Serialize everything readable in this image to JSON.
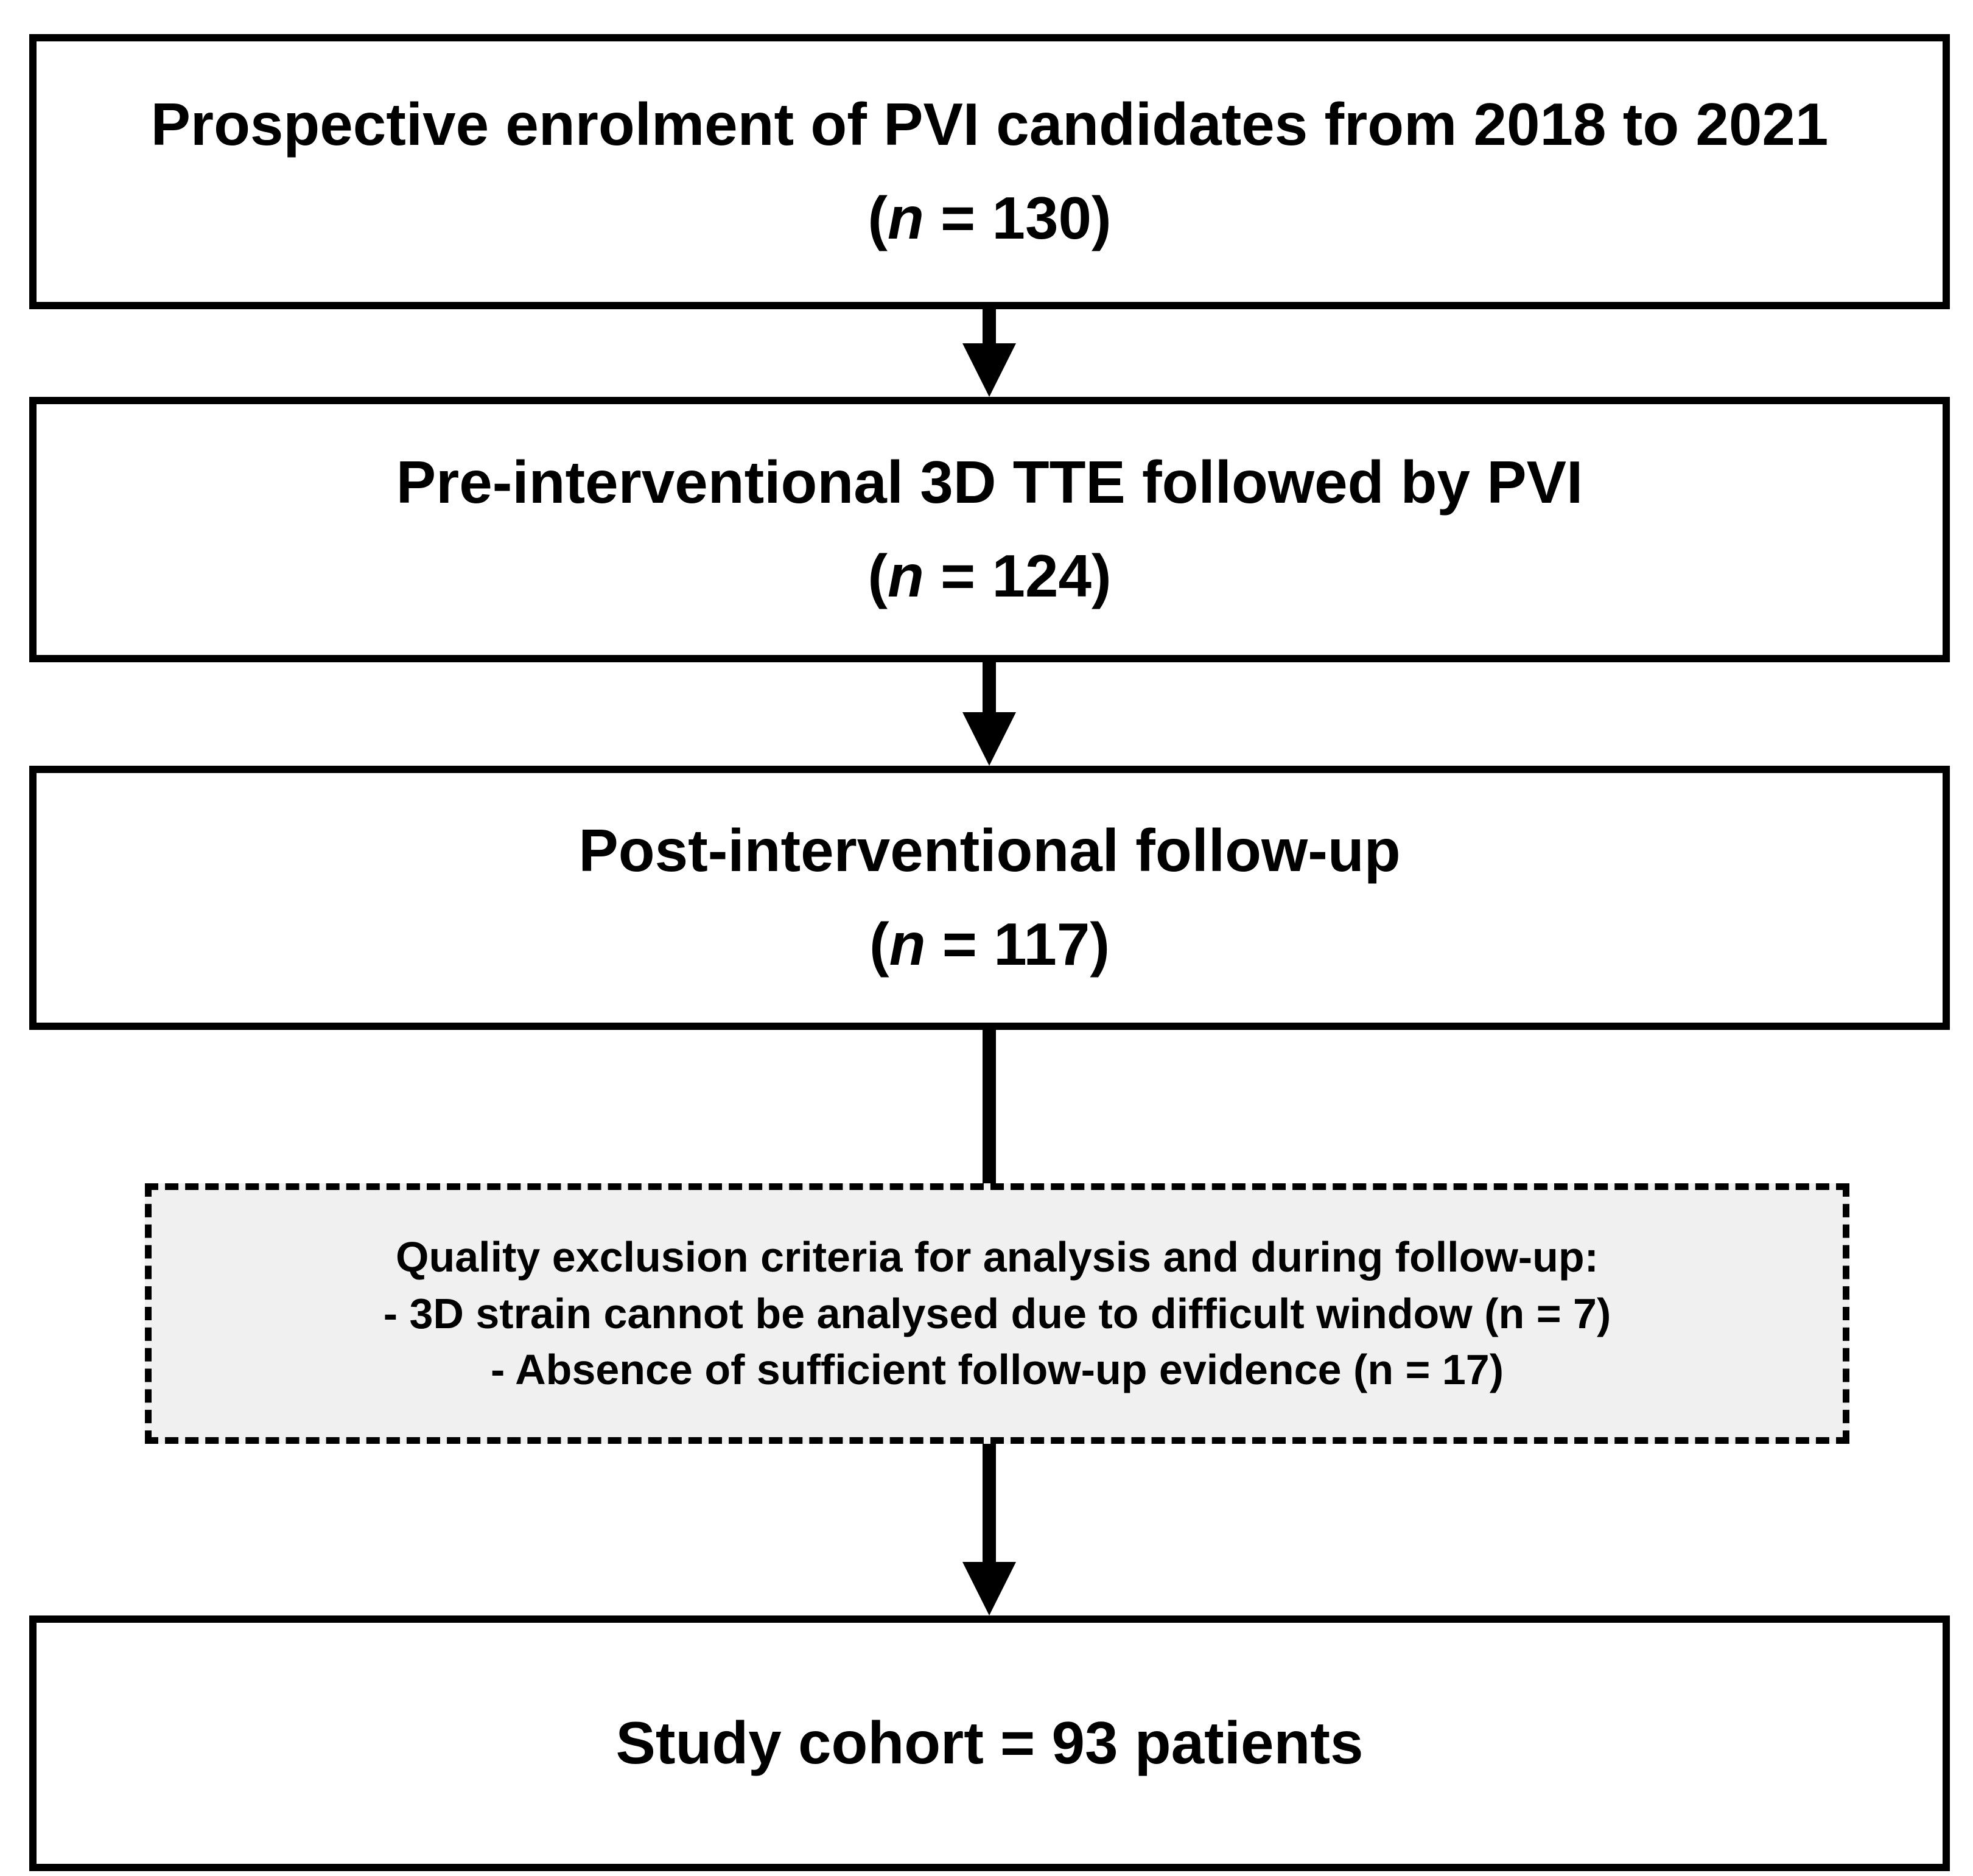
{
  "flow": {
    "boxes": [
      {
        "title": "Prospective enrolment of PVI candidates from 2018 to 2021",
        "count": {
          "open": "(",
          "var": "n",
          "rest": " = 130)"
        }
      },
      {
        "title": "Pre-interventional 3D TTE followed by PVI",
        "count": {
          "open": "(",
          "var": "n",
          "rest": " = 124)"
        }
      },
      {
        "title": "Post-interventional follow-up",
        "count": {
          "open": "(",
          "var": "n",
          "rest": " = 117)"
        }
      }
    ],
    "exclusion": {
      "header": "Quality exclusion criteria for analysis and during follow-up:",
      "items": [
        {
          "pre": "- 3D strain cannot be analysed due to difficult window (",
          "var": "n",
          "post": " = 7)"
        },
        {
          "pre": "- Absence of sufficient follow-up evidence (",
          "var": "n",
          "post": " = 17)"
        }
      ],
      "fill": "#f0f0f0"
    },
    "final": {
      "title": "Study cohort = 93 patients"
    },
    "colors": {
      "background": "#ffffff",
      "line": "#000000",
      "text": "#000000"
    }
  }
}
